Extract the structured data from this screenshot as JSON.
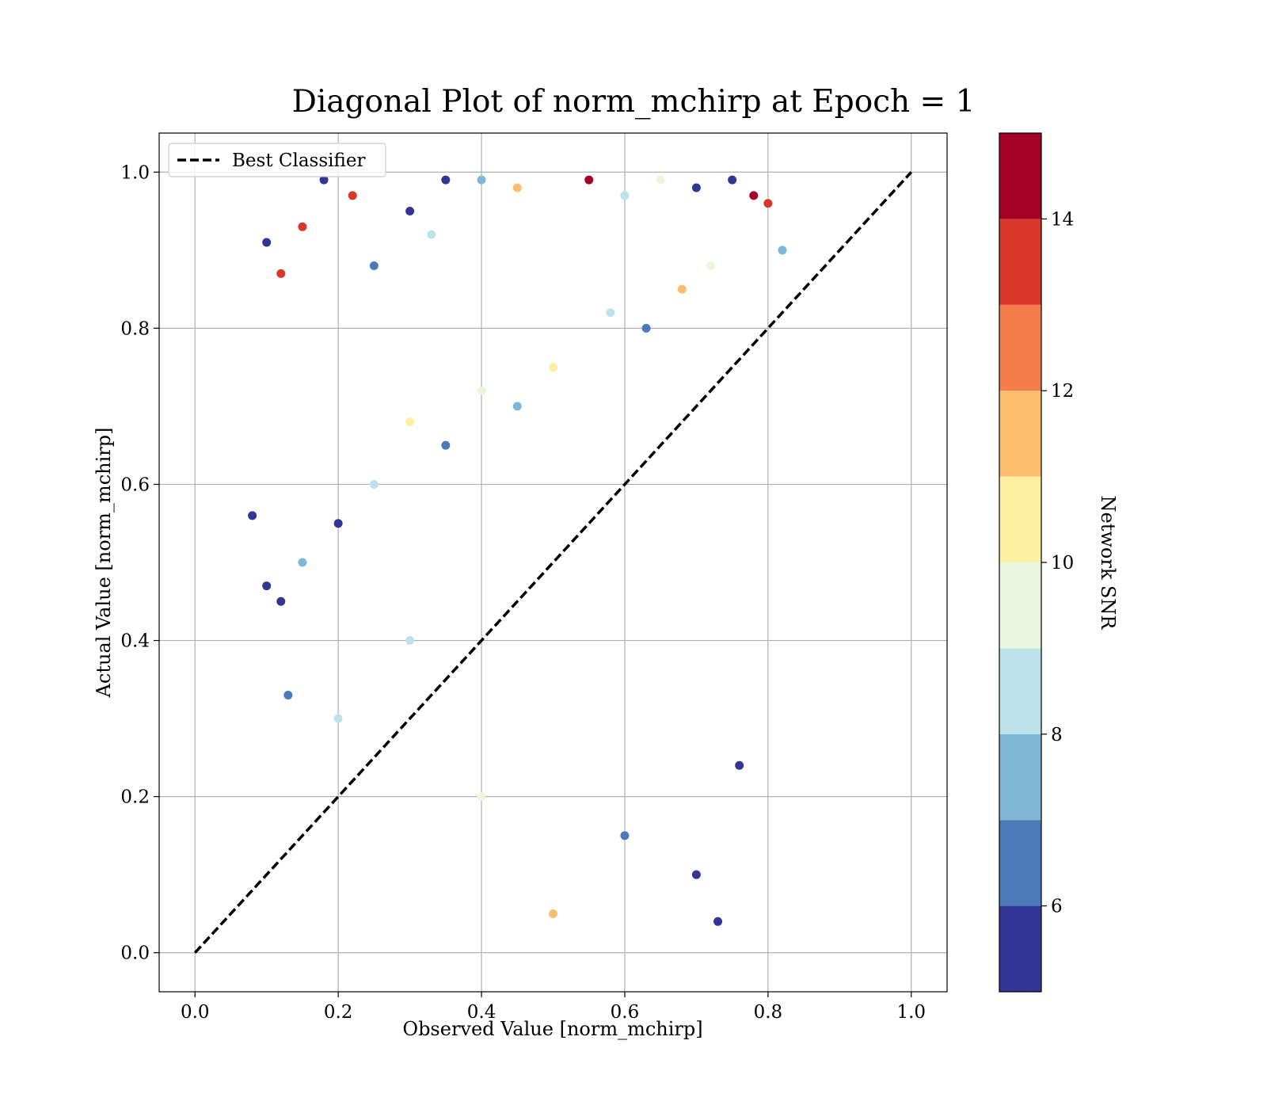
{
  "chart_data": {
    "type": "scatter",
    "title": "Diagonal Plot of norm_mchirp at Epoch = 1",
    "xlabel": "Observed Value [norm_mchirp]",
    "ylabel": "Actual Value [norm_mchirp]",
    "xlim": [
      -0.05,
      1.05
    ],
    "ylim": [
      -0.05,
      1.05
    ],
    "xticks": [
      "0.0",
      "0.2",
      "0.4",
      "0.6",
      "0.8",
      "1.0"
    ],
    "yticks": [
      "0.0",
      "0.2",
      "0.4",
      "0.6",
      "0.8",
      "1.0"
    ],
    "grid": true,
    "legend": {
      "position": "top-left",
      "entries": [
        "Best Classifier"
      ]
    },
    "reference_line": {
      "name": "Best Classifier",
      "style": "dashed",
      "color": "#000000",
      "x": [
        0,
        1
      ],
      "y": [
        0,
        1
      ]
    },
    "colorbar": {
      "label": "Network SNR",
      "range": [
        5,
        15
      ],
      "ticks": [
        "6",
        "8",
        "10",
        "12",
        "14"
      ],
      "bins": [
        {
          "from": 5,
          "to": 6,
          "color": "#313695"
        },
        {
          "from": 6,
          "to": 7,
          "color": "#4a7ab8"
        },
        {
          "from": 7,
          "to": 8,
          "color": "#80b6d6"
        },
        {
          "from": 8,
          "to": 9,
          "color": "#bee2ec"
        },
        {
          "from": 9,
          "to": 10,
          "color": "#ebf6df"
        },
        {
          "from": 10,
          "to": 11,
          "color": "#feeea2"
        },
        {
          "from": 11,
          "to": 12,
          "color": "#fdbd6f"
        },
        {
          "from": 12,
          "to": 13,
          "color": "#f47d4b"
        },
        {
          "from": 13,
          "to": 14,
          "color": "#d83729"
        },
        {
          "from": 14,
          "to": 15,
          "color": "#a50026"
        }
      ]
    },
    "series": [
      {
        "values_x": [
          0.1,
          0.12,
          0.15,
          0.18,
          0.22,
          0.25,
          0.3,
          0.35,
          0.33,
          0.4,
          0.45,
          0.55,
          0.6,
          0.65,
          0.7,
          0.75,
          0.78,
          0.8,
          0.82,
          0.72,
          0.68,
          0.63,
          0.58,
          0.5,
          0.45,
          0.4,
          0.35,
          0.3,
          0.25,
          0.2,
          0.15,
          0.12,
          0.3,
          0.5,
          0.7,
          0.6,
          0.2,
          0.4,
          0.76,
          0.73,
          0.08,
          0.1,
          0.13
        ],
        "values_y": [
          0.91,
          0.87,
          0.93,
          0.99,
          0.97,
          0.88,
          0.95,
          0.99,
          0.92,
          0.99,
          0.98,
          0.99,
          0.97,
          0.99,
          0.98,
          0.99,
          0.97,
          0.96,
          0.9,
          0.88,
          0.85,
          0.8,
          0.82,
          0.75,
          0.7,
          0.72,
          0.65,
          0.68,
          0.6,
          0.55,
          0.5,
          0.45,
          0.4,
          0.05,
          0.1,
          0.15,
          0.3,
          0.2,
          0.24,
          0.04,
          0.56,
          0.47,
          0.33
        ],
        "snr": [
          5.5,
          13.5,
          13.5,
          5.5,
          13.5,
          6,
          5.5,
          5.5,
          8,
          7,
          11,
          14.5,
          8.5,
          9,
          5.5,
          5.5,
          14.5,
          13.5,
          7,
          9,
          11,
          6,
          8,
          10,
          7,
          9,
          6,
          10,
          8,
          5.5,
          7,
          5.5,
          8,
          11,
          5.5,
          6,
          8,
          9,
          5.5,
          5.5,
          5.5,
          5.5,
          6
        ]
      }
    ]
  }
}
